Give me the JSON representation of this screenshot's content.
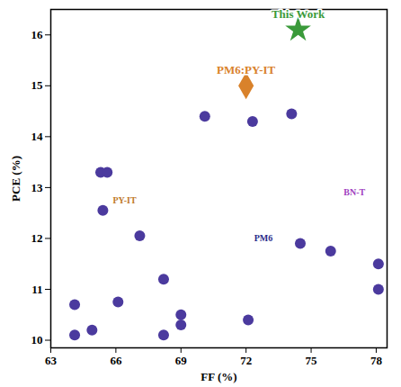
{
  "chart_data": {
    "type": "scatter",
    "x_label": "FF (%)",
    "y_label": "PCE (%)",
    "xlim": [
      63,
      78.5
    ],
    "xticks": [
      63,
      66,
      69,
      72,
      75,
      78
    ],
    "ylim": [
      9.85,
      16.5
    ],
    "yticks": [
      10,
      11,
      12,
      13,
      14,
      15,
      16
    ],
    "grid": false,
    "x": [
      65.3,
      65.6,
      70.1,
      72.3,
      74.1,
      65.4,
      67.1,
      74.5,
      75.9,
      78.1,
      78.1,
      64.1,
      66.1,
      68.2,
      69.0,
      69.0,
      72.1,
      64.1,
      64.9,
      68.2
    ],
    "y": [
      13.3,
      13.3,
      14.4,
      14.3,
      14.45,
      12.55,
      12.05,
      11.9,
      11.75,
      11.5,
      11.0,
      10.7,
      10.75,
      11.2,
      10.5,
      10.3,
      10.4,
      10.1,
      10.2,
      10.1
    ],
    "color": "#4b3a9e",
    "marker": "circle",
    "series": [
      {
        "name": "PM6:PY-IT",
        "color": "#d9822b",
        "marker": "diamond",
        "x": [
          72.0
        ],
        "y": [
          15.0
        ]
      },
      {
        "name": "This Work",
        "color": "#3a9a3a",
        "marker": "star",
        "x": [
          74.4
        ],
        "y": [
          16.1
        ]
      }
    ],
    "annotations": [
      {
        "text": "PY-IT",
        "x": 66.4,
        "y": 12.75,
        "color": "#c07a2a"
      },
      {
        "text": "PM6",
        "x": 72.8,
        "y": 12.0,
        "color": "#2a2a8a"
      },
      {
        "text": "BN-T",
        "x": 77.0,
        "y": 12.9,
        "color": "#a040c0"
      }
    ]
  }
}
